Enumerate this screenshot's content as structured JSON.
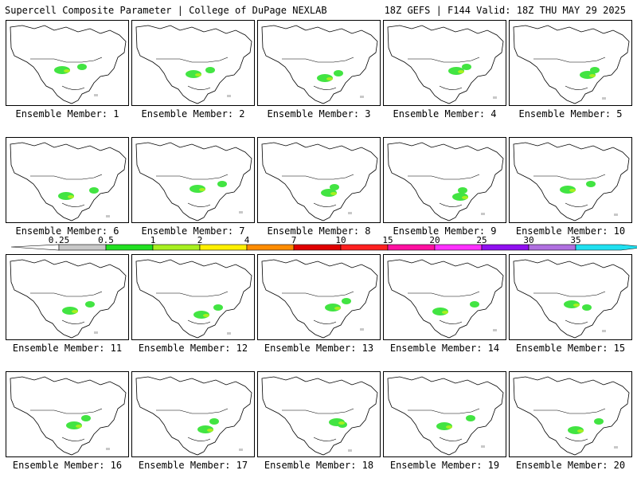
{
  "header": {
    "title": "Supercell Composite Parameter | College of DuPage NEXLAB",
    "run_info": "18Z GEFS | F144 Valid: 18Z THU MAY 29 2025"
  },
  "members": [
    {
      "label": "Ensemble Member: 1"
    },
    {
      "label": "Ensemble Member: 2"
    },
    {
      "label": "Ensemble Member: 3"
    },
    {
      "label": "Ensemble Member: 4"
    },
    {
      "label": "Ensemble Member: 5"
    },
    {
      "label": "Ensemble Member: 6"
    },
    {
      "label": "Ensemble Member: 7"
    },
    {
      "label": "Ensemble Member: 8"
    },
    {
      "label": "Ensemble Member: 9"
    },
    {
      "label": "Ensemble Member: 10"
    },
    {
      "label": "Ensemble Member: 11"
    },
    {
      "label": "Ensemble Member: 12"
    },
    {
      "label": "Ensemble Member: 13"
    },
    {
      "label": "Ensemble Member: 14"
    },
    {
      "label": "Ensemble Member: 15"
    },
    {
      "label": "Ensemble Member: 16"
    },
    {
      "label": "Ensemble Member: 17"
    },
    {
      "label": "Ensemble Member: 18"
    },
    {
      "label": "Ensemble Member: 19"
    },
    {
      "label": "Ensemble Member: 20"
    }
  ],
  "legend": {
    "ticks": [
      "0.25",
      "0.5",
      "1",
      "2",
      "4",
      "7",
      "10",
      "15",
      "20",
      "25",
      "30",
      "35"
    ],
    "colors": [
      "#c8c8c8",
      "#22e022",
      "#a8f020",
      "#fff000",
      "#ff8c00",
      "#e00000",
      "#ff2020",
      "#ff10a0",
      "#ff30ff",
      "#9010f0",
      "#b070e0",
      "#20e0f0"
    ]
  }
}
